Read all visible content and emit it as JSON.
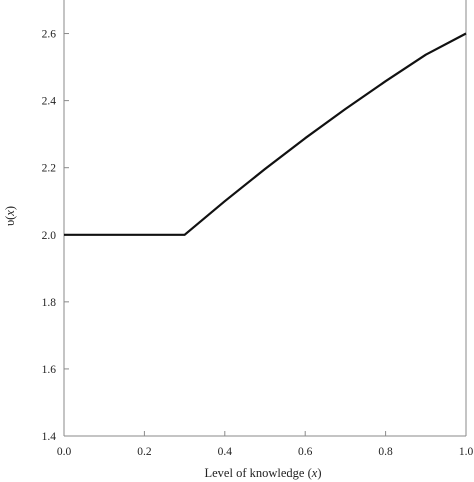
{
  "chart_data": {
    "type": "line",
    "title": "",
    "xlabel": "Level of knowledge (x)",
    "xlabel_parts": [
      "Level of knowledge (",
      "x",
      ")"
    ],
    "ylabel": "υ(x)",
    "ylabel_parts": [
      "υ(",
      "x",
      ")"
    ],
    "xlim": [
      0.0,
      1.0
    ],
    "ylim": [
      1.4,
      2.7
    ],
    "x_ticks": [
      0.0,
      0.2,
      0.4,
      0.6,
      0.8,
      1.0
    ],
    "x_tick_labels": [
      "0.0",
      "0.2",
      "0.4",
      "0.6",
      "0.8",
      "1.0"
    ],
    "y_ticks": [
      1.4,
      1.6,
      1.8,
      2.0,
      2.2,
      2.4,
      2.6
    ],
    "y_tick_labels": [
      "1.4",
      "1.6",
      "1.8",
      "2.0",
      "2.2",
      "2.4",
      "2.6"
    ],
    "grid": false,
    "series": [
      {
        "x": [
          0.0,
          0.3,
          0.4,
          0.5,
          0.6,
          0.7,
          0.8,
          0.9,
          1.0
        ],
        "y": [
          2.0,
          2.0,
          2.1,
          2.196,
          2.288,
          2.375,
          2.458,
          2.537,
          2.6
        ],
        "color": "#111111"
      }
    ]
  }
}
